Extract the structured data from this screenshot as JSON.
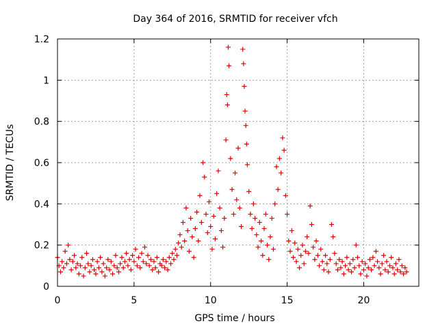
{
  "chart_data": {
    "type": "scatter",
    "title": "Day 364 of 2016, SRMTID for receiver vfch",
    "xlabel": "GPS time / hours",
    "ylabel": "SRMTID / TECUs",
    "xlim": [
      0,
      23.6
    ],
    "ylim": [
      0,
      1.2
    ],
    "xticks": [
      0,
      5,
      10,
      15,
      20
    ],
    "xtick_labels": [
      "0",
      "5",
      "10",
      "15",
      "20"
    ],
    "yticks": [
      0,
      0.2,
      0.4,
      0.6,
      0.8,
      1,
      1.2
    ],
    "ytick_labels": [
      "0",
      "0.2",
      "0.4",
      "0.6",
      "0.8",
      "1",
      "1.2"
    ],
    "grid": true,
    "marker": "plus",
    "color": "#e00000",
    "series": [
      {
        "name": "vfch",
        "points": [
          [
            0.0,
            0.14
          ],
          [
            0.1,
            0.1
          ],
          [
            0.2,
            0.07
          ],
          [
            0.3,
            0.12
          ],
          [
            0.4,
            0.09
          ],
          [
            0.5,
            0.17
          ],
          [
            0.6,
            0.11
          ],
          [
            0.7,
            0.2
          ],
          [
            0.8,
            0.13
          ],
          [
            0.9,
            0.08
          ],
          [
            1.0,
            0.12
          ],
          [
            1.1,
            0.15
          ],
          [
            1.2,
            0.09
          ],
          [
            1.3,
            0.11
          ],
          [
            1.4,
            0.06
          ],
          [
            1.5,
            0.1
          ],
          [
            1.6,
            0.14
          ],
          [
            1.7,
            0.05
          ],
          [
            1.8,
            0.09
          ],
          [
            1.9,
            0.16
          ],
          [
            2.0,
            0.11
          ],
          [
            2.1,
            0.07
          ],
          [
            2.2,
            0.1
          ],
          [
            2.3,
            0.13
          ],
          [
            2.4,
            0.08
          ],
          [
            2.5,
            0.06
          ],
          [
            2.6,
            0.12
          ],
          [
            2.7,
            0.09
          ],
          [
            2.8,
            0.14
          ],
          [
            2.9,
            0.07
          ],
          [
            3.0,
            0.11
          ],
          [
            3.1,
            0.05
          ],
          [
            3.2,
            0.09
          ],
          [
            3.3,
            0.13
          ],
          [
            3.4,
            0.08
          ],
          [
            3.5,
            0.12
          ],
          [
            3.6,
            0.06
          ],
          [
            3.7,
            0.1
          ],
          [
            3.8,
            0.15
          ],
          [
            3.9,
            0.09
          ],
          [
            4.0,
            0.07
          ],
          [
            4.1,
            0.11
          ],
          [
            4.2,
            0.14
          ],
          [
            4.3,
            0.09
          ],
          [
            4.4,
            0.12
          ],
          [
            4.5,
            0.16
          ],
          [
            4.6,
            0.1
          ],
          [
            4.7,
            0.13
          ],
          [
            4.8,
            0.08
          ],
          [
            4.9,
            0.15
          ],
          [
            5.0,
            0.12
          ],
          [
            5.1,
            0.18
          ],
          [
            5.2,
            0.1
          ],
          [
            5.3,
            0.14
          ],
          [
            5.4,
            0.09
          ],
          [
            5.5,
            0.16
          ],
          [
            5.6,
            0.12
          ],
          [
            5.7,
            0.19
          ],
          [
            5.8,
            0.11
          ],
          [
            5.9,
            0.15
          ],
          [
            6.0,
            0.1
          ],
          [
            6.1,
            0.13
          ],
          [
            6.2,
            0.08
          ],
          [
            6.3,
            0.12
          ],
          [
            6.4,
            0.09
          ],
          [
            6.5,
            0.14
          ],
          [
            6.6,
            0.07
          ],
          [
            6.7,
            0.11
          ],
          [
            6.8,
            0.1
          ],
          [
            6.9,
            0.13
          ],
          [
            7.0,
            0.09
          ],
          [
            7.1,
            0.12
          ],
          [
            7.2,
            0.08
          ],
          [
            7.3,
            0.14
          ],
          [
            7.4,
            0.11
          ],
          [
            7.5,
            0.16
          ],
          [
            7.6,
            0.13
          ],
          [
            7.7,
            0.18
          ],
          [
            7.8,
            0.15
          ],
          [
            7.9,
            0.21
          ],
          [
            8.0,
            0.25
          ],
          [
            8.1,
            0.19
          ],
          [
            8.2,
            0.31
          ],
          [
            8.3,
            0.22
          ],
          [
            8.4,
            0.38
          ],
          [
            8.5,
            0.27
          ],
          [
            8.6,
            0.17
          ],
          [
            8.7,
            0.33
          ],
          [
            8.8,
            0.24
          ],
          [
            8.9,
            0.14
          ],
          [
            9.0,
            0.28
          ],
          [
            9.1,
            0.36
          ],
          [
            9.2,
            0.22
          ],
          [
            9.3,
            0.44
          ],
          [
            9.4,
            0.31
          ],
          [
            9.5,
            0.6
          ],
          [
            9.6,
            0.53
          ],
          [
            9.7,
            0.35
          ],
          [
            9.8,
            0.26
          ],
          [
            9.9,
            0.41
          ],
          [
            10.0,
            0.29
          ],
          [
            10.1,
            0.18
          ],
          [
            10.2,
            0.34
          ],
          [
            10.3,
            0.23
          ],
          [
            10.4,
            0.45
          ],
          [
            10.5,
            0.56
          ],
          [
            10.6,
            0.38
          ],
          [
            10.7,
            0.27
          ],
          [
            10.8,
            0.19
          ],
          [
            10.9,
            0.33
          ],
          [
            11.0,
            0.71
          ],
          [
            11.05,
            0.93
          ],
          [
            11.1,
            0.88
          ],
          [
            11.15,
            1.16
          ],
          [
            11.2,
            1.07
          ],
          [
            11.3,
            0.62
          ],
          [
            11.4,
            0.47
          ],
          [
            11.5,
            0.35
          ],
          [
            11.6,
            0.55
          ],
          [
            11.7,
            0.42
          ],
          [
            11.8,
            0.67
          ],
          [
            11.9,
            0.38
          ],
          [
            12.0,
            0.29
          ],
          [
            12.1,
            1.15
          ],
          [
            12.15,
            1.08
          ],
          [
            12.2,
            0.97
          ],
          [
            12.25,
            0.85
          ],
          [
            12.3,
            0.78
          ],
          [
            12.35,
            0.69
          ],
          [
            12.4,
            0.59
          ],
          [
            12.5,
            0.46
          ],
          [
            12.6,
            0.35
          ],
          [
            12.7,
            0.28
          ],
          [
            12.8,
            0.4
          ],
          [
            12.9,
            0.33
          ],
          [
            13.0,
            0.25
          ],
          [
            13.1,
            0.19
          ],
          [
            13.2,
            0.31
          ],
          [
            13.3,
            0.22
          ],
          [
            13.4,
            0.15
          ],
          [
            13.5,
            0.28
          ],
          [
            13.6,
            0.35
          ],
          [
            13.7,
            0.2
          ],
          [
            13.8,
            0.13
          ],
          [
            13.9,
            0.24
          ],
          [
            14.0,
            0.33
          ],
          [
            14.1,
            0.18
          ],
          [
            14.2,
            0.4
          ],
          [
            14.3,
            0.58
          ],
          [
            14.4,
            0.47
          ],
          [
            14.5,
            0.62
          ],
          [
            14.6,
            0.55
          ],
          [
            14.7,
            0.72
          ],
          [
            14.8,
            0.66
          ],
          [
            14.9,
            0.44
          ],
          [
            15.0,
            0.35
          ],
          [
            15.1,
            0.22
          ],
          [
            15.2,
            0.17
          ],
          [
            15.3,
            0.27
          ],
          [
            15.4,
            0.14
          ],
          [
            15.5,
            0.21
          ],
          [
            15.6,
            0.12
          ],
          [
            15.7,
            0.18
          ],
          [
            15.8,
            0.09
          ],
          [
            15.9,
            0.15
          ],
          [
            16.0,
            0.2
          ],
          [
            16.1,
            0.11
          ],
          [
            16.2,
            0.17
          ],
          [
            16.3,
            0.24
          ],
          [
            16.4,
            0.16
          ],
          [
            16.5,
            0.39
          ],
          [
            16.6,
            0.3
          ],
          [
            16.7,
            0.19
          ],
          [
            16.8,
            0.13
          ],
          [
            16.9,
            0.22
          ],
          [
            17.0,
            0.15
          ],
          [
            17.1,
            0.1
          ],
          [
            17.2,
            0.18
          ],
          [
            17.3,
            0.12
          ],
          [
            17.4,
            0.08
          ],
          [
            17.5,
            0.15
          ],
          [
            17.6,
            0.11
          ],
          [
            17.7,
            0.07
          ],
          [
            17.8,
            0.13
          ],
          [
            17.9,
            0.3
          ],
          [
            18.0,
            0.24
          ],
          [
            18.1,
            0.16
          ],
          [
            18.2,
            0.11
          ],
          [
            18.3,
            0.08
          ],
          [
            18.4,
            0.13
          ],
          [
            18.5,
            0.09
          ],
          [
            18.6,
            0.12
          ],
          [
            18.7,
            0.06
          ],
          [
            18.8,
            0.1
          ],
          [
            18.9,
            0.14
          ],
          [
            19.0,
            0.08
          ],
          [
            19.1,
            0.11
          ],
          [
            19.2,
            0.07
          ],
          [
            19.3,
            0.13
          ],
          [
            19.4,
            0.09
          ],
          [
            19.5,
            0.2
          ],
          [
            19.6,
            0.14
          ],
          [
            19.7,
            0.1
          ],
          [
            19.8,
            0.06
          ],
          [
            19.9,
            0.12
          ],
          [
            20.0,
            0.08
          ],
          [
            20.1,
            0.11
          ],
          [
            20.2,
            0.05
          ],
          [
            20.3,
            0.09
          ],
          [
            20.4,
            0.13
          ],
          [
            20.5,
            0.08
          ],
          [
            20.6,
            0.14
          ],
          [
            20.7,
            0.1
          ],
          [
            20.8,
            0.17
          ],
          [
            20.9,
            0.12
          ],
          [
            21.0,
            0.09
          ],
          [
            21.1,
            0.06
          ],
          [
            21.2,
            0.11
          ],
          [
            21.3,
            0.15
          ],
          [
            21.4,
            0.08
          ],
          [
            21.5,
            0.12
          ],
          [
            21.6,
            0.07
          ],
          [
            21.7,
            0.1
          ],
          [
            21.8,
            0.14
          ],
          [
            21.9,
            0.09
          ],
          [
            22.0,
            0.06
          ],
          [
            22.1,
            0.11
          ],
          [
            22.2,
            0.08
          ],
          [
            22.3,
            0.13
          ],
          [
            22.4,
            0.07
          ],
          [
            22.5,
            0.1
          ],
          [
            22.6,
            0.06
          ],
          [
            22.7,
            0.09
          ],
          [
            22.8,
            0.07
          ]
        ]
      }
    ]
  }
}
